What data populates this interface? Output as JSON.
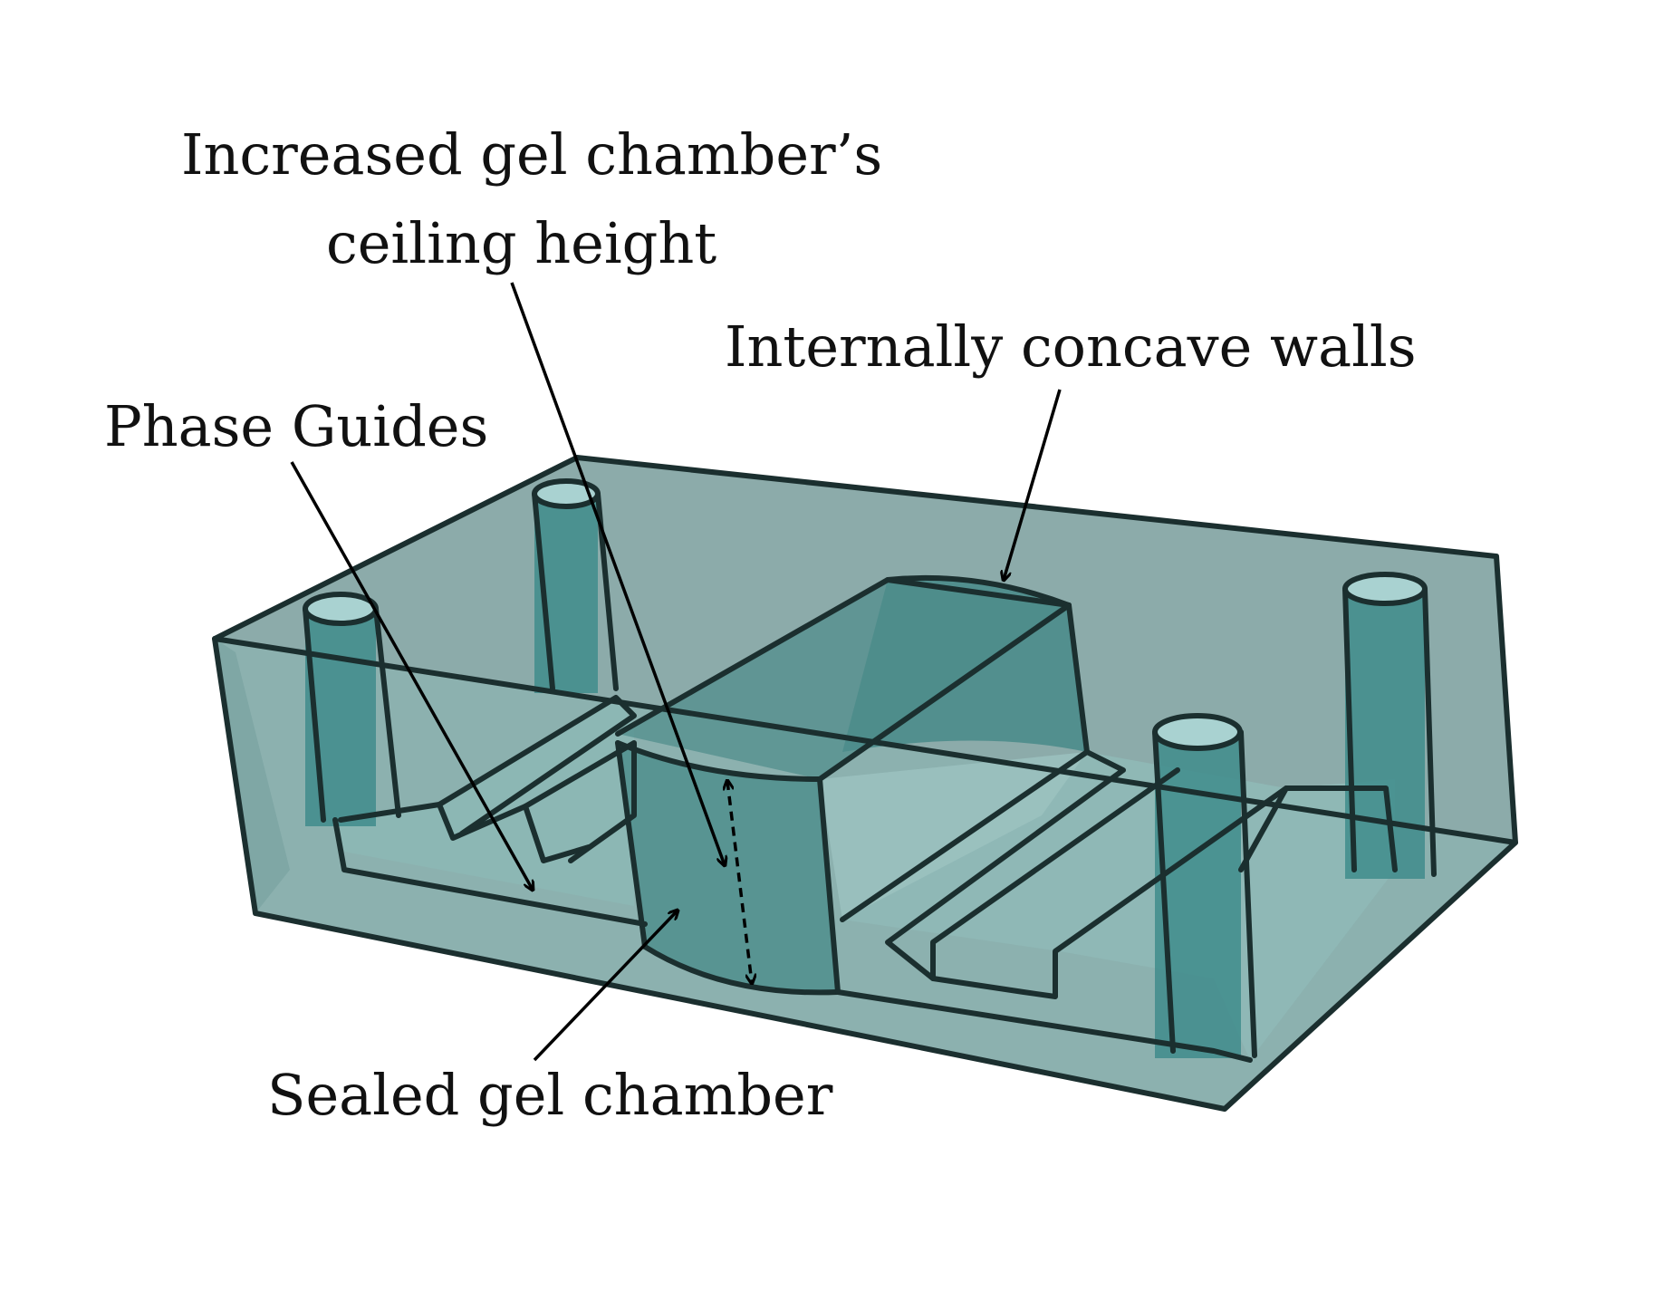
{
  "labels": {
    "ceiling_height_line1": "Increased gel chamber’s",
    "ceiling_height_line2": "ceiling height",
    "concave_walls": "Internally concave walls",
    "phase_guides": "Phase Guides",
    "sealed_chamber": "Sealed gel chamber"
  },
  "colors": {
    "body_fill": "#7fa8a6",
    "body_top": "#86a7a5",
    "channel_fill": "#5f9f9c",
    "pillar_fill": "#3f8c8c",
    "edge": "#1b2f2f"
  }
}
